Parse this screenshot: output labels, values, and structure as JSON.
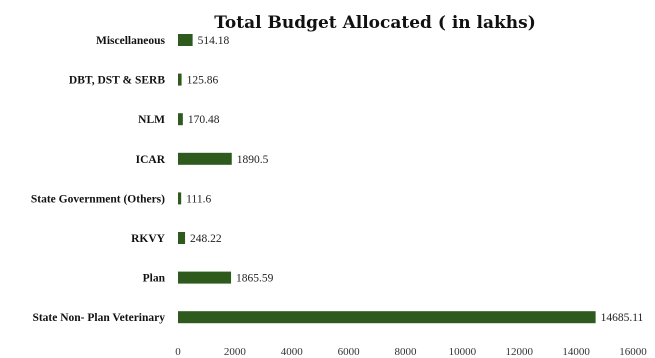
{
  "chart_data": {
    "type": "bar",
    "orientation": "horizontal",
    "title": "Total Budget Allocated ( in lakhs)",
    "xlabel": "",
    "ylabel": "",
    "xlim": [
      0,
      16000
    ],
    "xticks": [
      0,
      2000,
      4000,
      6000,
      8000,
      10000,
      12000,
      14000,
      16000
    ],
    "grid": false,
    "legend": "none",
    "categories": [
      "Miscellaneous",
      "DBT, DST & SERB",
      "NLM",
      "ICAR",
      "State Government (Others)",
      "RKVY",
      "Plan",
      "State Non- Plan Veterinary"
    ],
    "values": [
      514.18,
      125.86,
      170.48,
      1890.5,
      111.6,
      248.22,
      1865.59,
      14685.11
    ],
    "value_labels": [
      "514.18",
      "125.86",
      "170.48",
      "1890.5",
      "111.6",
      "248.22",
      "1865.59",
      "14685.11"
    ],
    "bar_color": "#2f5a1e"
  }
}
